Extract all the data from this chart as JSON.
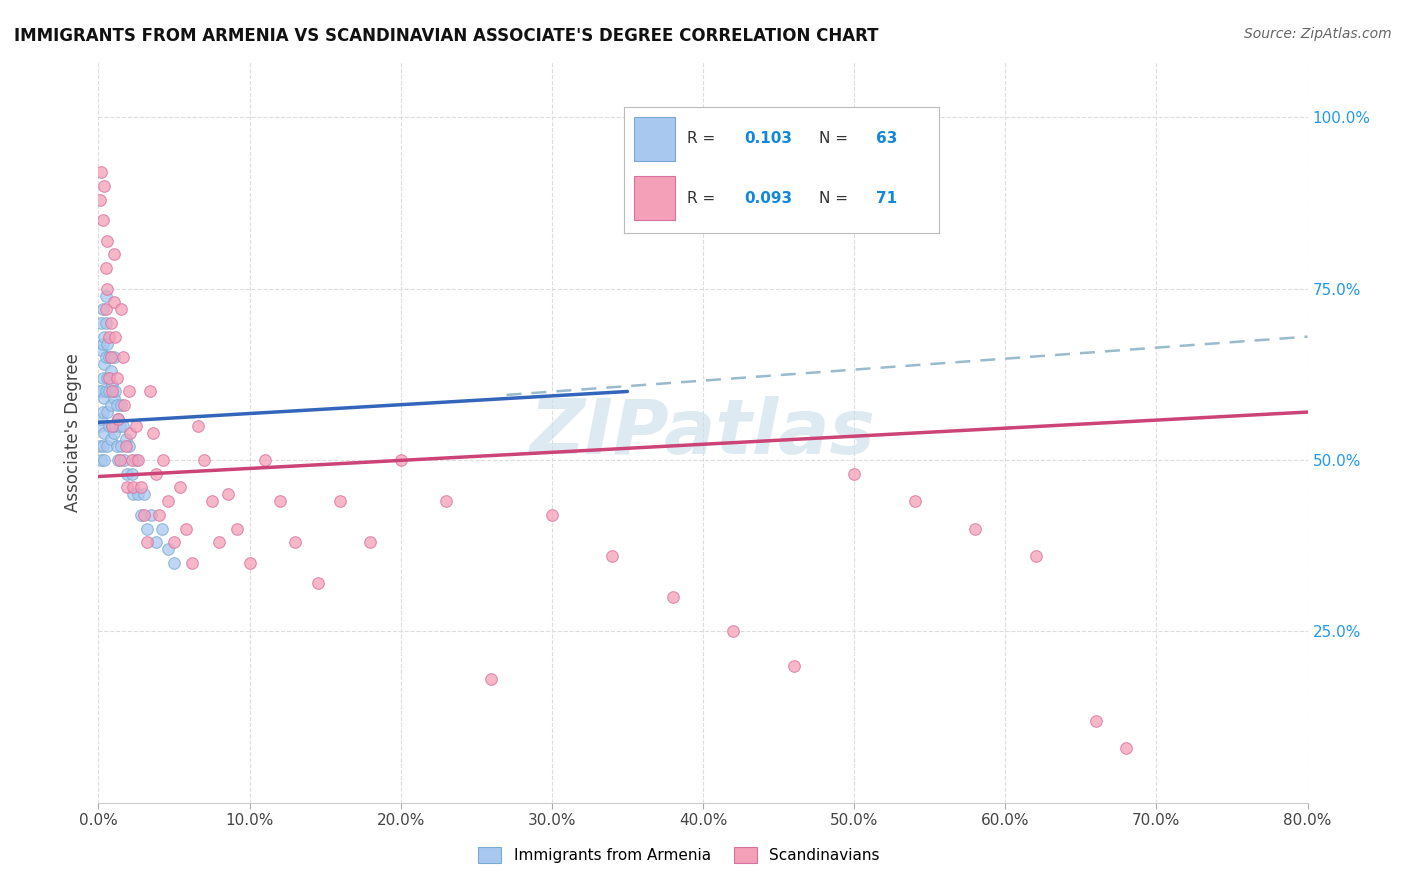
{
  "title": "IMMIGRANTS FROM ARMENIA VS SCANDINAVIAN ASSOCIATE'S DEGREE CORRELATION CHART",
  "source": "Source: ZipAtlas.com",
  "ylabel": "Associate's Degree",
  "legend_R1": "0.103",
  "legend_N1": "63",
  "legend_R2": "0.093",
  "legend_N2": "71",
  "blue_color": "#a8c8f0",
  "blue_edge_color": "#7aaad0",
  "pink_color": "#f4a0b8",
  "pink_edge_color": "#d870a0",
  "blue_line_color": "#3366bb",
  "pink_line_color": "#cc4477",
  "dashed_line_color": "#99bbcc",
  "watermark_color": "#c8dde8",
  "arm_x": [
    0.001,
    0.001,
    0.001,
    0.002,
    0.002,
    0.002,
    0.002,
    0.002,
    0.003,
    0.003,
    0.003,
    0.003,
    0.003,
    0.004,
    0.004,
    0.004,
    0.004,
    0.004,
    0.005,
    0.005,
    0.005,
    0.005,
    0.006,
    0.006,
    0.006,
    0.006,
    0.007,
    0.007,
    0.007,
    0.008,
    0.008,
    0.008,
    0.009,
    0.009,
    0.01,
    0.01,
    0.01,
    0.011,
    0.011,
    0.012,
    0.012,
    0.013,
    0.013,
    0.014,
    0.015,
    0.015,
    0.016,
    0.017,
    0.018,
    0.019,
    0.02,
    0.022,
    0.023,
    0.025,
    0.026,
    0.028,
    0.03,
    0.032,
    0.035,
    0.038,
    0.042,
    0.046,
    0.05
  ],
  "arm_y": [
    0.6,
    0.55,
    0.52,
    0.7,
    0.66,
    0.6,
    0.56,
    0.5,
    0.72,
    0.67,
    0.62,
    0.57,
    0.52,
    0.68,
    0.64,
    0.59,
    0.54,
    0.5,
    0.74,
    0.7,
    0.65,
    0.6,
    0.67,
    0.62,
    0.57,
    0.52,
    0.65,
    0.6,
    0.55,
    0.63,
    0.58,
    0.53,
    0.61,
    0.55,
    0.65,
    0.59,
    0.54,
    0.6,
    0.55,
    0.58,
    0.52,
    0.56,
    0.5,
    0.55,
    0.58,
    0.52,
    0.55,
    0.5,
    0.53,
    0.48,
    0.52,
    0.48,
    0.45,
    0.5,
    0.45,
    0.42,
    0.45,
    0.4,
    0.42,
    0.38,
    0.4,
    0.37,
    0.35
  ],
  "scan_x": [
    0.001,
    0.002,
    0.003,
    0.004,
    0.005,
    0.005,
    0.006,
    0.006,
    0.007,
    0.007,
    0.008,
    0.008,
    0.009,
    0.009,
    0.01,
    0.01,
    0.011,
    0.012,
    0.013,
    0.014,
    0.015,
    0.016,
    0.017,
    0.018,
    0.019,
    0.02,
    0.021,
    0.022,
    0.023,
    0.025,
    0.026,
    0.028,
    0.03,
    0.032,
    0.034,
    0.036,
    0.038,
    0.04,
    0.043,
    0.046,
    0.05,
    0.054,
    0.058,
    0.062,
    0.066,
    0.07,
    0.075,
    0.08,
    0.086,
    0.092,
    0.1,
    0.11,
    0.12,
    0.13,
    0.145,
    0.16,
    0.18,
    0.2,
    0.23,
    0.26,
    0.3,
    0.34,
    0.38,
    0.42,
    0.46,
    0.5,
    0.54,
    0.58,
    0.62,
    0.66,
    0.68
  ],
  "scan_y": [
    0.88,
    0.92,
    0.85,
    0.9,
    0.78,
    0.72,
    0.82,
    0.75,
    0.68,
    0.62,
    0.7,
    0.65,
    0.6,
    0.55,
    0.8,
    0.73,
    0.68,
    0.62,
    0.56,
    0.5,
    0.72,
    0.65,
    0.58,
    0.52,
    0.46,
    0.6,
    0.54,
    0.5,
    0.46,
    0.55,
    0.5,
    0.46,
    0.42,
    0.38,
    0.6,
    0.54,
    0.48,
    0.42,
    0.5,
    0.44,
    0.38,
    0.46,
    0.4,
    0.35,
    0.55,
    0.5,
    0.44,
    0.38,
    0.45,
    0.4,
    0.35,
    0.5,
    0.44,
    0.38,
    0.32,
    0.44,
    0.38,
    0.5,
    0.44,
    0.18,
    0.42,
    0.36,
    0.3,
    0.25,
    0.2,
    0.48,
    0.44,
    0.4,
    0.36,
    0.12,
    0.08
  ],
  "blue_line_x0": 0.0,
  "blue_line_y0": 0.555,
  "blue_line_x1": 0.35,
  "blue_line_y1": 0.6,
  "dashed_line_x0": 0.27,
  "dashed_line_y0": 0.595,
  "dashed_line_x1": 0.8,
  "dashed_line_y1": 0.68,
  "pink_line_x0": 0.0,
  "pink_line_y0": 0.476,
  "pink_line_x1": 0.8,
  "pink_line_y1": 0.57,
  "xlim": [
    0.0,
    0.8
  ],
  "ylim": [
    0.0,
    1.08
  ],
  "xtick_pct": [
    0.0,
    10.0,
    20.0,
    30.0,
    40.0,
    50.0,
    60.0,
    70.0,
    80.0
  ],
  "ytick_vals": [
    0.25,
    0.5,
    0.75,
    1.0
  ],
  "ytick_labels_right": [
    "25.0%",
    "50.0%",
    "75.0%",
    "100.0%"
  ]
}
